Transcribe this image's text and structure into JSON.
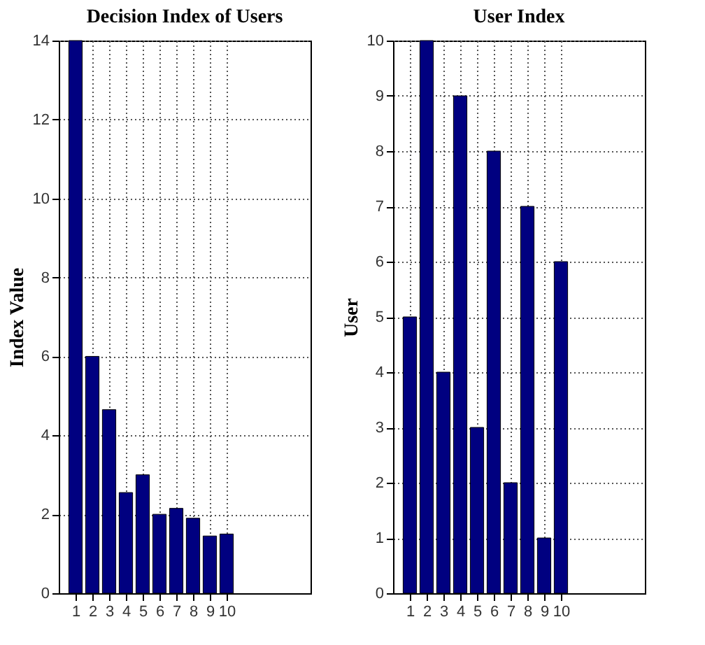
{
  "chart_data": [
    {
      "type": "bar",
      "title": "Decision Index of Users",
      "ylabel": "Index Value",
      "x": [
        1,
        2,
        3,
        4,
        5,
        6,
        7,
        8,
        9,
        10
      ],
      "values": [
        14,
        6,
        4.65,
        2.55,
        3.0,
        2.0,
        2.15,
        1.9,
        1.45,
        1.5
      ],
      "color": "#000080",
      "xlim": [
        0,
        15
      ],
      "xticks": [
        1,
        2,
        3,
        4,
        5,
        6,
        7,
        8,
        9,
        10
      ],
      "ylim": [
        0,
        14
      ],
      "yticks": [
        0,
        2,
        4,
        6,
        8,
        10,
        12,
        14
      ],
      "grid": true
    },
    {
      "type": "bar",
      "title": "User Index",
      "ylabel": "User",
      "x": [
        1,
        2,
        3,
        4,
        5,
        6,
        7,
        8,
        9,
        10
      ],
      "values": [
        5,
        10,
        4,
        9,
        3,
        8,
        2,
        7,
        1,
        6
      ],
      "color": "#000080",
      "xlim": [
        0,
        15
      ],
      "xticks": [
        1,
        2,
        3,
        4,
        5,
        6,
        7,
        8,
        9,
        10
      ],
      "ylim": [
        0,
        10
      ],
      "yticks": [
        0,
        1,
        2,
        3,
        4,
        5,
        6,
        7,
        8,
        9,
        10
      ],
      "grid": true
    }
  ]
}
